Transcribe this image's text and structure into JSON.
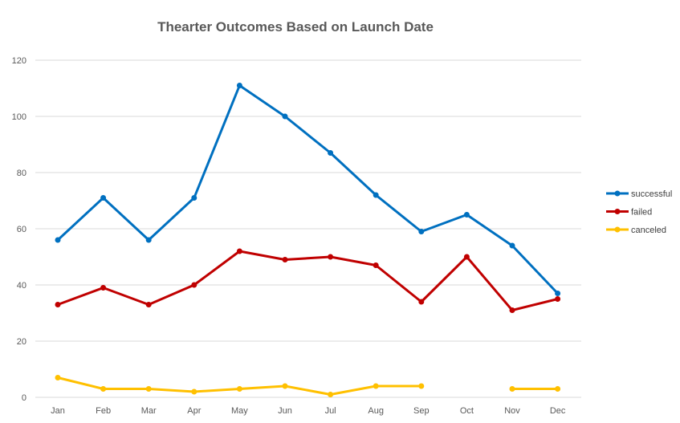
{
  "chart_data": {
    "type": "line",
    "title": "Thearter Outcomes Based on Launch Date",
    "xlabel": "",
    "ylabel": "",
    "categories": [
      "Jan",
      "Feb",
      "Mar",
      "Apr",
      "May",
      "Jun",
      "Jul",
      "Aug",
      "Sep",
      "Oct",
      "Nov",
      "Dec"
    ],
    "ylim": [
      0,
      120
    ],
    "yticks": [
      0,
      20,
      40,
      60,
      80,
      100,
      120
    ],
    "grid": true,
    "legend_position": "right",
    "series": [
      {
        "name": "successful",
        "color": "#0070C0",
        "values": [
          56,
          71,
          56,
          71,
          111,
          100,
          87,
          72,
          59,
          65,
          54,
          37
        ]
      },
      {
        "name": "failed",
        "color": "#C00000",
        "values": [
          33,
          39,
          33,
          40,
          52,
          49,
          50,
          47,
          34,
          50,
          31,
          35
        ]
      },
      {
        "name": "canceled",
        "color": "#FFC000",
        "values": [
          7,
          3,
          3,
          2,
          3,
          4,
          1,
          4,
          4,
          null,
          3,
          3
        ]
      }
    ]
  }
}
